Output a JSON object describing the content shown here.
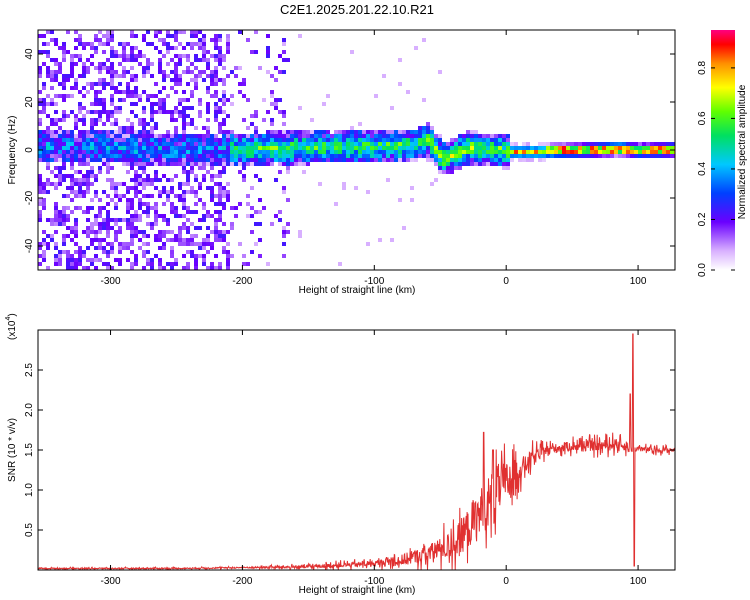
{
  "title": "C2E1.2025.201.22.10.R21",
  "colors": {
    "line": "#e03030",
    "axis": "#000000"
  },
  "chart_data": [
    {
      "type": "heatmap",
      "xlabel": "Height of straight line (km)",
      "ylabel": "Frequency (Hz)",
      "xlim": [
        -355,
        128
      ],
      "ylim": [
        -50,
        50
      ],
      "xticks": [
        -300,
        -200,
        -100,
        0,
        100
      ],
      "xtick_labels": [
        "-300",
        "-200",
        "-100",
        "0",
        "100"
      ],
      "yticks": [
        -40,
        -20,
        0,
        20,
        40
      ],
      "ytick_labels": [
        "-40",
        "-20",
        "0",
        "20",
        "40"
      ],
      "colorbar": {
        "label": "Normalized spectral amplitude",
        "range": [
          0,
          0.95
        ],
        "ticks": [
          0.0,
          0.2,
          0.4,
          0.6,
          0.8
        ],
        "tick_labels": [
          "0.0",
          "0.2",
          "0.4",
          "0.6",
          "0.8"
        ]
      },
      "ridge": {
        "x": [
          -355,
          -300,
          -250,
          -200,
          -150,
          -100,
          -70,
          -60,
          -50,
          -40,
          -30,
          -20,
          -10,
          0,
          20,
          50,
          85,
          100,
          128
        ],
        "y": [
          2,
          2,
          1,
          1,
          2,
          2,
          3,
          5,
          -3,
          -1,
          2,
          1,
          1,
          0,
          0,
          0.5,
          1.5,
          0.5,
          1
        ]
      }
    },
    {
      "type": "line",
      "xlabel": "Height of straight line (km)",
      "ylabel": "SNR (10 * v/v)",
      "yscale_label": "(x10",
      "yscale_exp": "4",
      "xlim": [
        -355,
        128
      ],
      "ylim": [
        0,
        3.0
      ],
      "xticks": [
        -300,
        -200,
        -100,
        0,
        100
      ],
      "xtick_labels": [
        "-300",
        "-200",
        "-100",
        "0",
        "100"
      ],
      "yticks": [
        0.5,
        1.0,
        1.5,
        2.0,
        2.5
      ],
      "ytick_labels": [
        "0.5",
        "1.0",
        "1.5",
        "2.0",
        "2.5"
      ],
      "trend": {
        "x": [
          -355,
          -250,
          -200,
          -150,
          -100,
          -80,
          -60,
          -40,
          -30,
          -20,
          -10,
          0,
          10,
          20,
          30,
          50,
          70,
          85,
          95,
          100,
          110,
          128
        ],
        "y": [
          0.02,
          0.02,
          0.03,
          0.04,
          0.08,
          0.12,
          0.2,
          0.32,
          0.5,
          0.7,
          0.95,
          1.1,
          1.25,
          1.4,
          1.5,
          1.55,
          1.55,
          1.58,
          1.5,
          1.52,
          1.5,
          1.5
        ]
      },
      "noise": {
        "x": [
          -355,
          -200,
          -100,
          -60,
          -40,
          -20,
          -5,
          10,
          30,
          80,
          100,
          128
        ],
        "amp": [
          0.01,
          0.01,
          0.05,
          0.15,
          0.25,
          0.45,
          0.45,
          0.2,
          0.08,
          0.1,
          0.05,
          0.04
        ]
      },
      "spikes": [
        {
          "x": -17,
          "y": 1.72
        },
        {
          "x": -10,
          "y": 1.5
        },
        {
          "x": 96,
          "y": 2.95
        },
        {
          "x": 97,
          "y": 0.05
        },
        {
          "x": 94,
          "y": 2.2
        }
      ]
    }
  ]
}
